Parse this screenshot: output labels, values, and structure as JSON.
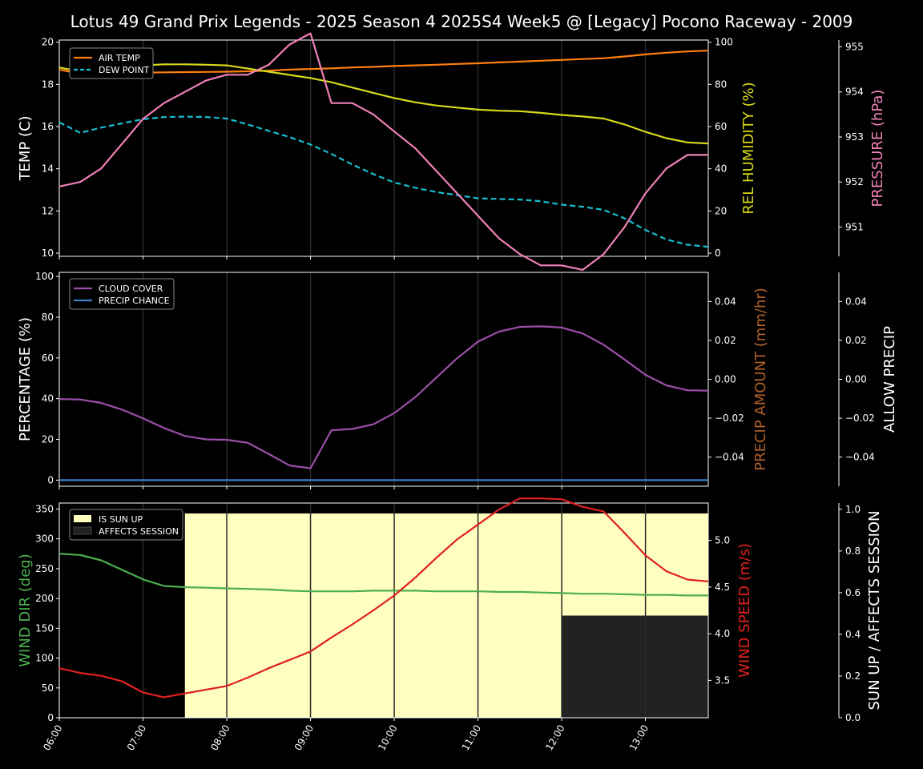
{
  "title": "Lotus 49 Grand Prix Legends - 2025 Season 4 2025S4 Week5 @ [Legacy] Pocono Raceway - 2009",
  "colors": {
    "air_temp": "#ff7f0e",
    "dew_point": "#17becf",
    "humidity": "#d9d91a",
    "pressure": "#f080b8",
    "cloud": "#9b4fa8",
    "precip_chance": "#3b7fc4",
    "precip_amount_label": "#b0602a",
    "wind_dir": "#4caf50",
    "wind_speed": "#e02020",
    "sun_up": "#ffffc0",
    "affects": "#222222"
  },
  "time_ticks": [
    "06:00",
    "07:00",
    "08:00",
    "09:00",
    "10:00",
    "11:00",
    "12:00",
    "13:00"
  ],
  "chart_data": [
    {
      "type": "line",
      "name": "temperature",
      "x": [
        "06:00",
        "06:15",
        "06:30",
        "06:45",
        "07:00",
        "07:15",
        "07:30",
        "07:45",
        "08:00",
        "08:15",
        "08:30",
        "08:45",
        "09:00",
        "09:15",
        "09:30",
        "09:45",
        "10:00",
        "10:15",
        "10:30",
        "10:45",
        "11:00",
        "11:15",
        "11:30",
        "11:45",
        "12:00",
        "12:15",
        "12:30",
        "12:45",
        "13:00",
        "13:15",
        "13:30",
        "13:45"
      ],
      "ylabel": "TEMP (C)",
      "ylim": [
        9.85,
        20.1
      ],
      "yticks": [
        10,
        12,
        14,
        16,
        18,
        20
      ],
      "y2label": "REL HUMIDITY (%)",
      "y2lim": [
        -1.5,
        101
      ],
      "y2ticks": [
        0,
        20,
        40,
        60,
        80,
        100
      ],
      "y3label": "PRESSURE (hPa)",
      "y3lim": [
        950.35,
        955.15
      ],
      "y3ticks": [
        951,
        952,
        953,
        954,
        955
      ],
      "legend_placement": "upper-left",
      "series": [
        {
          "name": "AIR TEMP",
          "axis": "left",
          "values": [
            18.7,
            18.5,
            18.52,
            18.54,
            18.56,
            18.57,
            18.58,
            18.59,
            18.6,
            18.62,
            18.65,
            18.7,
            18.73,
            18.76,
            18.8,
            18.83,
            18.87,
            18.9,
            18.93,
            18.97,
            19.0,
            19.04,
            19.08,
            19.12,
            19.16,
            19.2,
            19.24,
            19.32,
            19.42,
            19.5,
            19.56,
            19.6
          ]
        },
        {
          "name": "DEW POINT",
          "axis": "left",
          "values": [
            16.2,
            15.7,
            15.95,
            16.15,
            16.35,
            16.45,
            16.47,
            16.45,
            16.38,
            16.1,
            15.8,
            15.5,
            15.15,
            14.7,
            14.2,
            13.75,
            13.35,
            13.1,
            12.9,
            12.75,
            12.6,
            12.57,
            12.54,
            12.46,
            12.3,
            12.2,
            12.05,
            11.65,
            11.1,
            10.65,
            10.4,
            10.3
          ]
        },
        {
          "name": "REL HUMIDITY",
          "axis": "right",
          "values": [
            88,
            86,
            87,
            88,
            89,
            89.5,
            89.5,
            89.3,
            89,
            87.5,
            86,
            84.5,
            83,
            81,
            78.5,
            76,
            73.5,
            71.5,
            70,
            69,
            68,
            67.5,
            67.3,
            66.5,
            65.5,
            64.8,
            63.8,
            61,
            57.5,
            54.5,
            52.5,
            52
          ]
        },
        {
          "name": "PRESSURE",
          "axis": "right2",
          "values": [
            951.9,
            952.0,
            952.3,
            952.85,
            953.4,
            953.75,
            954.0,
            954.25,
            954.38,
            954.38,
            954.6,
            955.05,
            955.3,
            953.75,
            953.75,
            953.5,
            953.12,
            952.75,
            952.25,
            951.75,
            951.25,
            950.75,
            950.4,
            950.15,
            950.15,
            950.05,
            950.4,
            951.0,
            951.75,
            952.3,
            952.6,
            952.6
          ]
        }
      ]
    },
    {
      "type": "line",
      "name": "precipitation",
      "ylabel": "PERCENTAGE (%)",
      "ylim": [
        -3,
        102
      ],
      "yticks": [
        0,
        20,
        40,
        60,
        80,
        100
      ],
      "y2label": "PRECIP AMOUNT (mm/hr)",
      "y2lim": [
        -0.055,
        0.055
      ],
      "y2ticks": [
        -0.04,
        -0.02,
        0.0,
        0.02,
        0.04
      ],
      "y2ticklabels": [
        "−0.04",
        "−0.02",
        "0.00",
        "0.02",
        "0.04"
      ],
      "y3label": "ALLOW PRECIP",
      "y3lim": [
        -0.055,
        0.055
      ],
      "y3ticks": [
        -0.04,
        -0.02,
        0.0,
        0.02,
        0.04
      ],
      "y3ticklabels": [
        "−0.04",
        "−0.02",
        "0.00",
        "0.02",
        "0.04"
      ],
      "legend_placement": "upper-left",
      "series": [
        {
          "name": "CLOUD COVER",
          "values": [
            39.8,
            39.6,
            37.9,
            34.6,
            30.3,
            25.6,
            21.7,
            20.0,
            19.8,
            18.3,
            12.9,
            7.2,
            5.8,
            24.5,
            25.1,
            27.4,
            32.9,
            40.7,
            50.2,
            59.8,
            68.0,
            72.9,
            75.2,
            75.5,
            74.9,
            72.0,
            66.5,
            59.2,
            51.7,
            46.5,
            44.1,
            43.9
          ]
        },
        {
          "name": "PRECIP CHANCE",
          "values": [
            0,
            0,
            0,
            0,
            0,
            0,
            0,
            0,
            0,
            0,
            0,
            0,
            0,
            0,
            0,
            0,
            0,
            0,
            0,
            0,
            0,
            0,
            0,
            0,
            0,
            0,
            0,
            0,
            0,
            0,
            0,
            0
          ]
        }
      ]
    },
    {
      "type": "line",
      "name": "wind",
      "ylabel": "WIND DIR (deg)",
      "ylim": [
        0,
        360
      ],
      "yticks": [
        0,
        50,
        100,
        150,
        200,
        250,
        300,
        350
      ],
      "y2label": "WIND SPEED (m/s)",
      "y2lim": [
        3.1,
        5.4
      ],
      "y2ticks": [
        3.5,
        4.0,
        4.5,
        5.0
      ],
      "y2ticklabels": [
        "3.5",
        "4.0",
        "4.5",
        "5.0"
      ],
      "y3label": "SUN UP / AFFECTS SESSION",
      "y3lim": [
        0,
        1.03
      ],
      "y3ticks": [
        0.0,
        0.2,
        0.4,
        0.6,
        0.8,
        1.0
      ],
      "y3ticklabels": [
        "0.0",
        "0.2",
        "0.4",
        "0.6",
        "0.8",
        "1.0"
      ],
      "legend_placement": "upper-left",
      "series": [
        {
          "name": "WIND DIR",
          "axis": "left",
          "values": [
            275,
            273,
            264,
            248,
            232,
            221,
            219,
            218,
            217,
            216,
            215,
            213,
            212,
            212,
            212,
            213,
            213,
            213,
            212,
            212,
            212,
            211,
            211,
            210,
            209,
            208,
            208,
            207,
            206,
            206,
            205,
            205
          ]
        },
        {
          "name": "WIND SPEED",
          "axis": "right",
          "values": [
            3.63,
            3.58,
            3.55,
            3.49,
            3.37,
            3.32,
            3.36,
            3.4,
            3.44,
            3.53,
            3.63,
            3.72,
            3.81,
            3.96,
            4.1,
            4.25,
            4.41,
            4.6,
            4.81,
            5.01,
            5.17,
            5.33,
            5.45,
            5.45,
            5.44,
            5.36,
            5.31,
            5.08,
            4.84,
            4.67,
            4.58,
            4.56
          ]
        }
      ],
      "bands": [
        {
          "name": "IS SUN UP",
          "x_start": "07:30",
          "x_end": "13:45",
          "level": 0.98
        },
        {
          "name": "AFFECTS SESSION",
          "x_start": "12:00",
          "x_end": "13:45",
          "level": 0.49
        }
      ]
    }
  ]
}
